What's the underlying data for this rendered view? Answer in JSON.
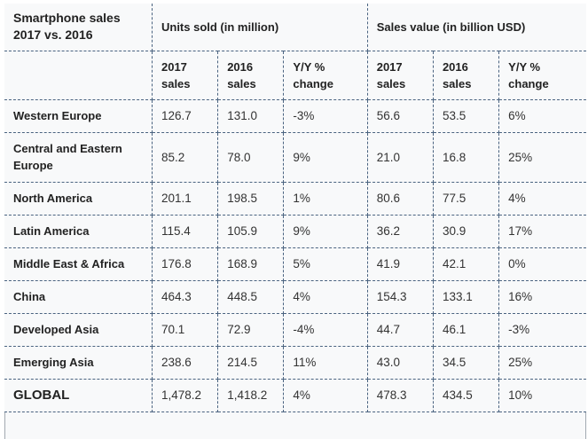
{
  "table": {
    "title": "Smartphone sales 2017 vs. 2016",
    "group_headers": {
      "units": "Units sold (in million)",
      "value": "Sales value (in billion USD)"
    },
    "sub_headers": {
      "units": [
        "2017 sales",
        "2016 sales",
        "Y/Y % change"
      ],
      "value": [
        "2017 sales",
        "2016 sales",
        "Y/Y % change"
      ]
    },
    "rows": [
      {
        "region": "Western Europe",
        "units_2017": "126.7",
        "units_2016": "131.0",
        "units_yoy": "-3%",
        "value_2017": "56.6",
        "value_2016": "53.5",
        "value_yoy": "6%"
      },
      {
        "region": "Central and Eastern Europe",
        "units_2017": "85.2",
        "units_2016": "78.0",
        "units_yoy": "9%",
        "value_2017": "21.0",
        "value_2016": "16.8",
        "value_yoy": "25%"
      },
      {
        "region": "North America",
        "units_2017": "201.1",
        "units_2016": "198.5",
        "units_yoy": "1%",
        "value_2017": "80.6",
        "value_2016": "77.5",
        "value_yoy": "4%"
      },
      {
        "region": "Latin America",
        "units_2017": "115.4",
        "units_2016": "105.9",
        "units_yoy": "9%",
        "value_2017": "36.2",
        "value_2016": "30.9",
        "value_yoy": "17%"
      },
      {
        "region": "Middle East & Africa",
        "units_2017": "176.8",
        "units_2016": "168.9",
        "units_yoy": "5%",
        "value_2017": "41.9",
        "value_2016": "42.1",
        "value_yoy": "0%"
      },
      {
        "region": "China",
        "units_2017": "464.3",
        "units_2016": "448.5",
        "units_yoy": "4%",
        "value_2017": "154.3",
        "value_2016": "133.1",
        "value_yoy": "16%"
      },
      {
        "region": "Developed Asia",
        "units_2017": "70.1",
        "units_2016": "72.9",
        "units_yoy": "-4%",
        "value_2017": "44.7",
        "value_2016": "46.1",
        "value_yoy": "-3%"
      },
      {
        "region": "Emerging Asia",
        "units_2017": "238.6",
        "units_2016": "214.5",
        "units_yoy": "11%",
        "value_2017": "43.0",
        "value_2016": "34.5",
        "value_yoy": "25%"
      }
    ],
    "global": {
      "region": "GLOBAL",
      "units_2017": "1,478.2",
      "units_2016": "1,418.2",
      "units_yoy": "4%",
      "value_2017": "478.3",
      "value_2016": "434.5",
      "value_yoy": "10%"
    }
  }
}
